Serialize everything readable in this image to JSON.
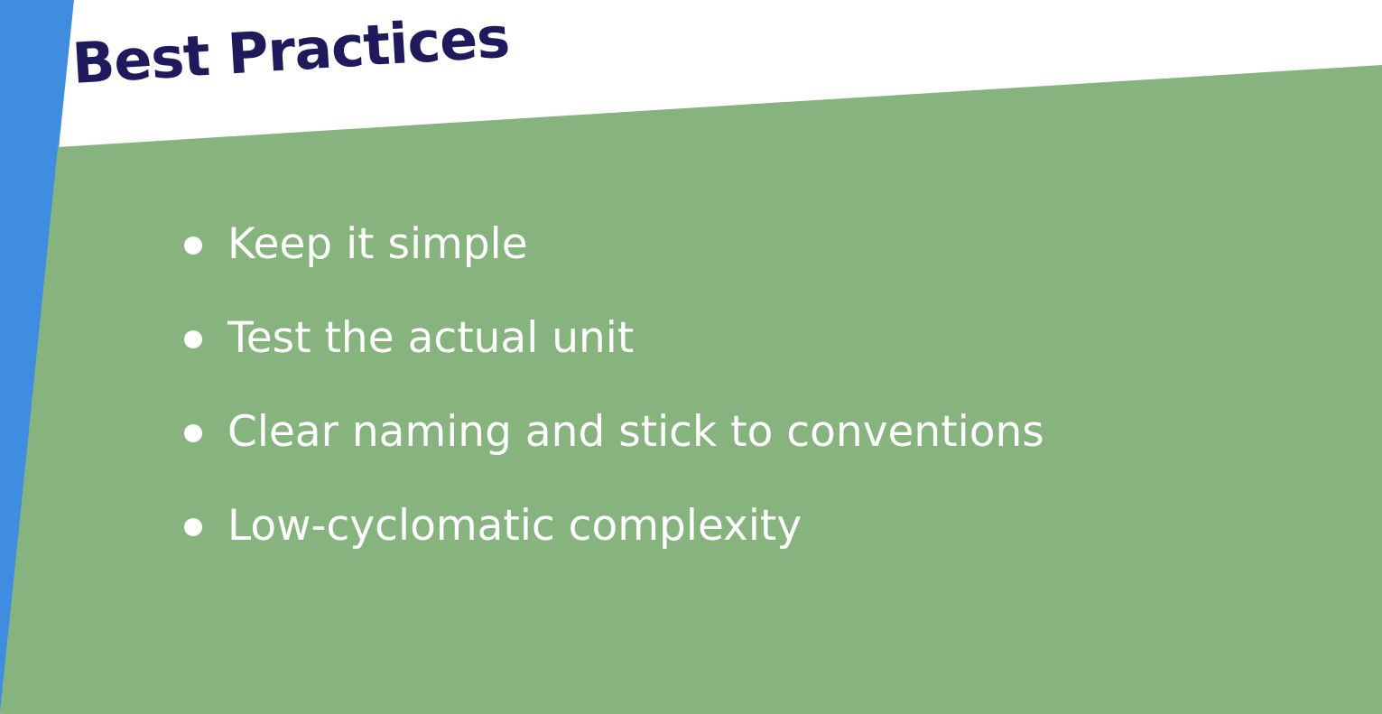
{
  "slide": {
    "title": "Best Practices",
    "bullets": [
      "Keep it simple",
      "Test the actual unit",
      "Clear naming and stick to conventions",
      "Low-cyclomatic complexity"
    ]
  },
  "colors": {
    "background": "#ffffff",
    "blue_band": "#3f8de0",
    "green_panel": "#86b37e",
    "title_text": "#1e1a5c",
    "bullet_text": "#ffffff",
    "bullet_dot": "#ffffff"
  }
}
